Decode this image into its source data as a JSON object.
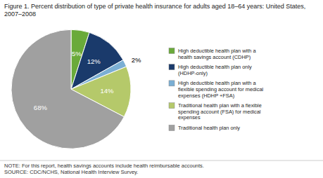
{
  "chart_data": {
    "type": "pie",
    "title": "Figure 1. Percent distribution of type of private health insurance for adults aged 18–64 years: United States, 2007–2008",
    "categories": [
      "High deductible health plan with a\nhealth savings account (CDHP)",
      "High deductible health plan only\n(HDHP-only)",
      "High deductible health plan with a\nflexible spending account for medical\nexpenses (HDHP +FSA)",
      "Traditional health plan with a flexible\nspending account (FSA) for medical\nexpenses",
      "Traditional health plan only"
    ],
    "values": [
      5,
      12,
      2,
      14,
      68
    ],
    "value_labels": [
      "5%",
      "12%",
      "2%",
      "14%",
      "68%"
    ],
    "colors": [
      "#6aaa3a",
      "#1a3a6b",
      "#7bafd4",
      "#b5c96a",
      "#a0a0a0"
    ],
    "data_labels": true,
    "legend": "right",
    "annotations": [
      "NOTE: For this report, health savings accounts include health reimbursable accounts.\nSOURCE: CDC/NCHS, National Health Interview Survey."
    ]
  }
}
